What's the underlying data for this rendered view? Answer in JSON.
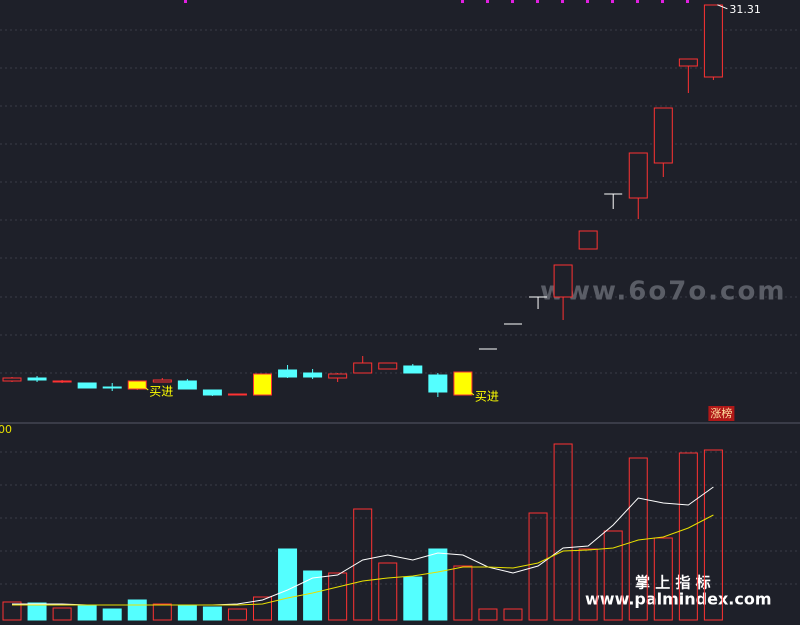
{
  "chart_data": [
    {
      "type": "candlestick",
      "open": [
        8.74,
        8.92,
        8.68,
        8.62,
        8.38,
        8.74,
        8.68,
        8.74,
        8.2,
        7.9,
        7.9,
        9.4,
        9.22,
        8.92,
        9.22,
        9.46,
        9.64,
        9.1,
        7.9,
        10.66,
        12.16,
        13.78,
        13.78,
        16.66,
        19.96,
        19.72,
        21.82,
        27.64,
        26.98
      ],
      "close": [
        8.92,
        8.8,
        8.74,
        8.32,
        8.32,
        8.26,
        8.8,
        8.26,
        7.9,
        7.96,
        9.16,
        8.98,
        8.98,
        9.16,
        9.82,
        9.82,
        9.22,
        8.08,
        9.28,
        10.66,
        12.16,
        13.78,
        15.7,
        17.74,
        19.96,
        22.42,
        25.12,
        28.06,
        31.3
      ],
      "high": [
        8.98,
        9.04,
        8.8,
        8.62,
        8.62,
        8.74,
        8.92,
        8.86,
        8.2,
        7.96,
        9.16,
        9.7,
        9.46,
        9.22,
        10.24,
        9.82,
        9.76,
        9.22,
        9.28,
        10.66,
        12.16,
        13.78,
        15.7,
        17.74,
        19.96,
        22.42,
        25.12,
        28.06,
        31.31
      ],
      "low": [
        8.68,
        8.68,
        8.62,
        8.32,
        8.14,
        8.2,
        8.68,
        8.26,
        7.84,
        7.9,
        7.9,
        8.92,
        8.86,
        8.68,
        9.22,
        9.46,
        9.22,
        7.78,
        7.9,
        10.66,
        12.16,
        13.06,
        12.4,
        16.66,
        19.06,
        18.46,
        20.98,
        26.02,
        26.8
      ],
      "signal_candles": [
        5,
        10,
        18
      ],
      "ylim": [
        6.28,
        31.6
      ],
      "up_color": "#ff3232",
      "down_color": "#54ffff",
      "signal_color": "#ffff00",
      "flat_color": "#ffffff",
      "annotations": [
        {
          "text": "31.31",
          "index": 28,
          "value": 31.31
        },
        {
          "text": "买进",
          "index": 5
        },
        {
          "text": "买进",
          "index": 18
        },
        {
          "text": "涨榜",
          "index": 28
        }
      ]
    },
    {
      "type": "volume",
      "label": "00",
      "values": [
        18,
        17,
        12,
        14,
        11,
        20,
        16,
        15,
        13,
        11,
        23,
        71,
        49,
        47,
        111,
        57,
        43,
        71,
        54,
        11,
        11,
        107,
        176,
        71,
        89,
        162,
        82,
        167,
        170
      ],
      "ylim": [
        0,
        180
      ],
      "series": [
        {
          "color": "#ffffff",
          "values": [
            16,
            16,
            16,
            15,
            15,
            15,
            15,
            15,
            15,
            16,
            20,
            30,
            42,
            45,
            60,
            65,
            60,
            67,
            65,
            53,
            47,
            54,
            72,
            74,
            95,
            122,
            117,
            115,
            133
          ]
        },
        {
          "color": "#e8e000",
          "values": [
            15,
            15,
            15,
            15,
            15,
            15,
            15,
            15,
            15,
            15,
            16,
            22,
            27,
            33,
            39,
            42,
            44,
            48,
            53,
            53,
            52,
            57,
            69,
            70,
            72,
            80,
            83,
            92,
            105
          ]
        }
      ]
    }
  ],
  "watermarks": [
    "www.6o7o.com",
    "掌 上 指 标",
    "www.palmindex.com"
  ]
}
